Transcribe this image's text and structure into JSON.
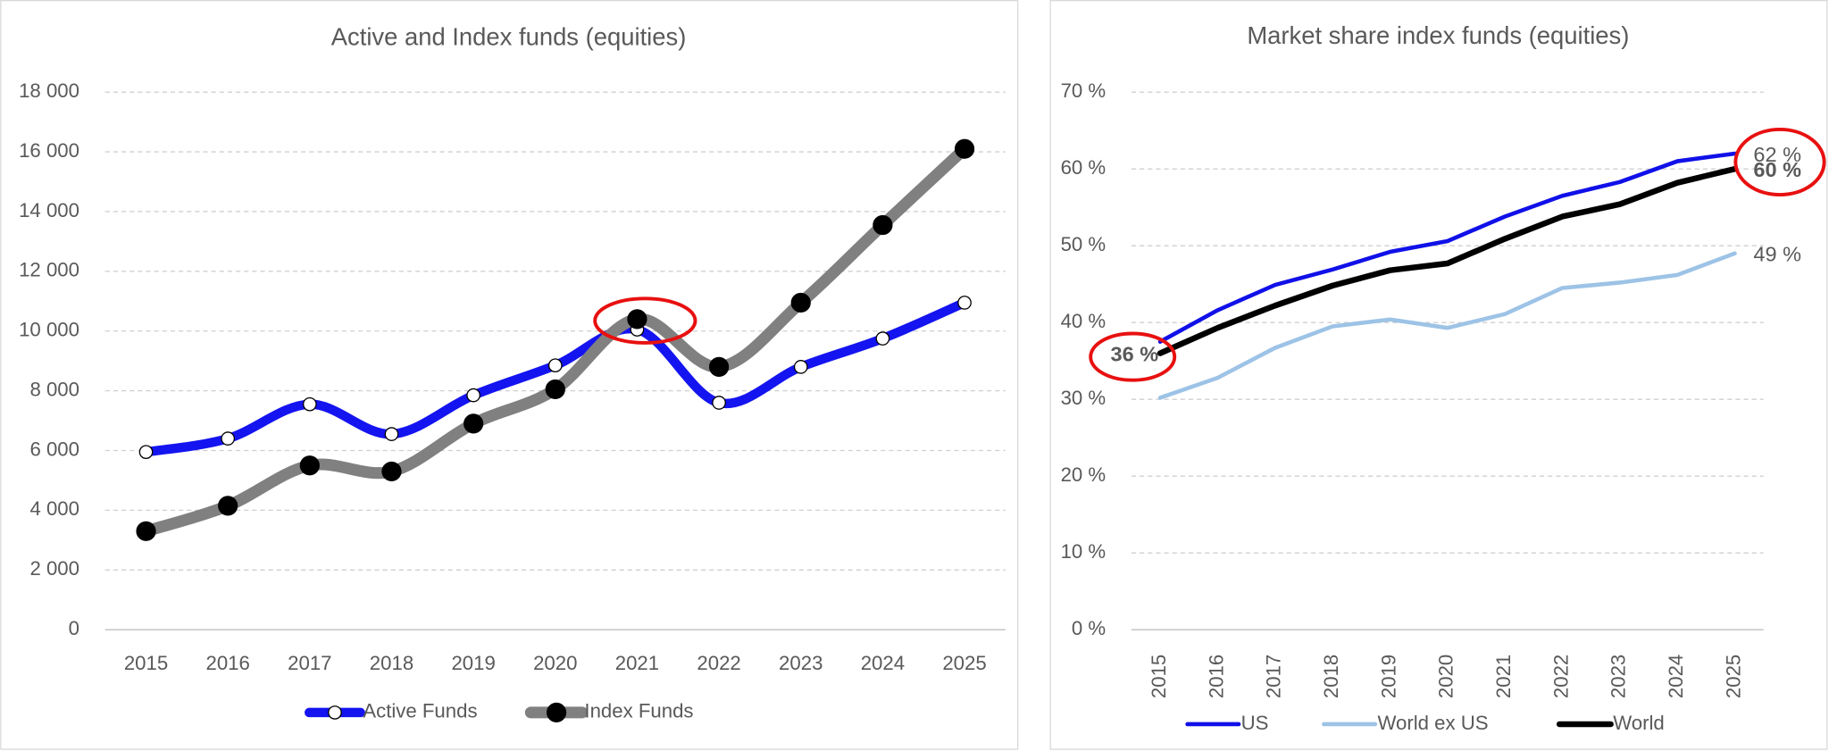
{
  "chart_data": [
    {
      "type": "line",
      "smooth": true,
      "title": "Active and Index funds (equities)",
      "categories": [
        "2015",
        "2016",
        "2017",
        "2018",
        "2019",
        "2020",
        "2021",
        "2022",
        "2023",
        "2024",
        "2025"
      ],
      "series": [
        {
          "name": "Active Funds",
          "color": "#1414f0",
          "marker_fill": "#ffffff",
          "values": [
            5950,
            6400,
            7550,
            6550,
            7850,
            8850,
            10050,
            7600,
            8800,
            9750,
            10950
          ]
        },
        {
          "name": "Index Funds",
          "color": "#808080",
          "marker_fill": "#000000",
          "values": [
            3300,
            4150,
            5500,
            5300,
            6900,
            8050,
            10400,
            8800,
            10950,
            13550,
            16100
          ]
        }
      ],
      "ylim": [
        0,
        18000
      ],
      "yticks": [
        0,
        {
          "value": 2000,
          "label": "2 000"
        },
        {
          "value": 4000,
          "label": "4 000"
        },
        {
          "value": 6000,
          "label": "6 000"
        },
        {
          "value": 8000,
          "label": "8 000"
        },
        {
          "value": 10000,
          "label": "10 000"
        },
        {
          "value": 12000,
          "label": "12 000"
        },
        {
          "value": 14000,
          "label": "14 000"
        },
        {
          "value": 16000,
          "label": "16 000"
        },
        {
          "value": 18000,
          "label": "18 000"
        }
      ],
      "grid": true,
      "legend": "bottom"
    },
    {
      "type": "line",
      "smooth": false,
      "title": "Market share index funds (equities)",
      "categories": [
        "2015",
        "2016",
        "2017",
        "2018",
        "2019",
        "2020",
        "2021",
        "2022",
        "2023",
        "2024",
        "2025"
      ],
      "series": [
        {
          "name": "US",
          "color": "#1010e8",
          "values": [
            37.5,
            41.6,
            44.9,
            46.9,
            49.2,
            50.6,
            53.8,
            56.5,
            58.3,
            61,
            62
          ],
          "value_labels": [
            null,
            null,
            null,
            null,
            null,
            null,
            null,
            null,
            null,
            null,
            "62 %"
          ]
        },
        {
          "name": "World ex US",
          "color": "#9dc3e6",
          "values": [
            30.2,
            32.8,
            36.7,
            39.5,
            40.4,
            39.3,
            41.1,
            44.5,
            45.2,
            46.2,
            49
          ],
          "value_labels": [
            null,
            null,
            null,
            null,
            null,
            null,
            null,
            null,
            null,
            null,
            "49 %"
          ]
        },
        {
          "name": "World",
          "color": "#000000",
          "bold_labels": true,
          "values": [
            36,
            39.3,
            42.2,
            44.8,
            46.8,
            47.7,
            50.9,
            53.8,
            55.4,
            58.2,
            60
          ],
          "value_labels": [
            "36 %",
            null,
            null,
            null,
            null,
            null,
            null,
            null,
            null,
            null,
            "60 %"
          ]
        }
      ],
      "ylim": [
        0,
        70
      ],
      "yticks": [
        {
          "value": 0,
          "label": "0 %"
        },
        {
          "value": 10,
          "label": "10 %"
        },
        {
          "value": 20,
          "label": "20 %"
        },
        {
          "value": 30,
          "label": "30 %"
        },
        {
          "value": 40,
          "label": "40 %"
        },
        {
          "value": 50,
          "label": "50 %"
        },
        {
          "value": 60,
          "label": "60 %"
        },
        {
          "value": 70,
          "label": "70 %"
        }
      ],
      "grid": true,
      "legend": "bottom"
    }
  ]
}
